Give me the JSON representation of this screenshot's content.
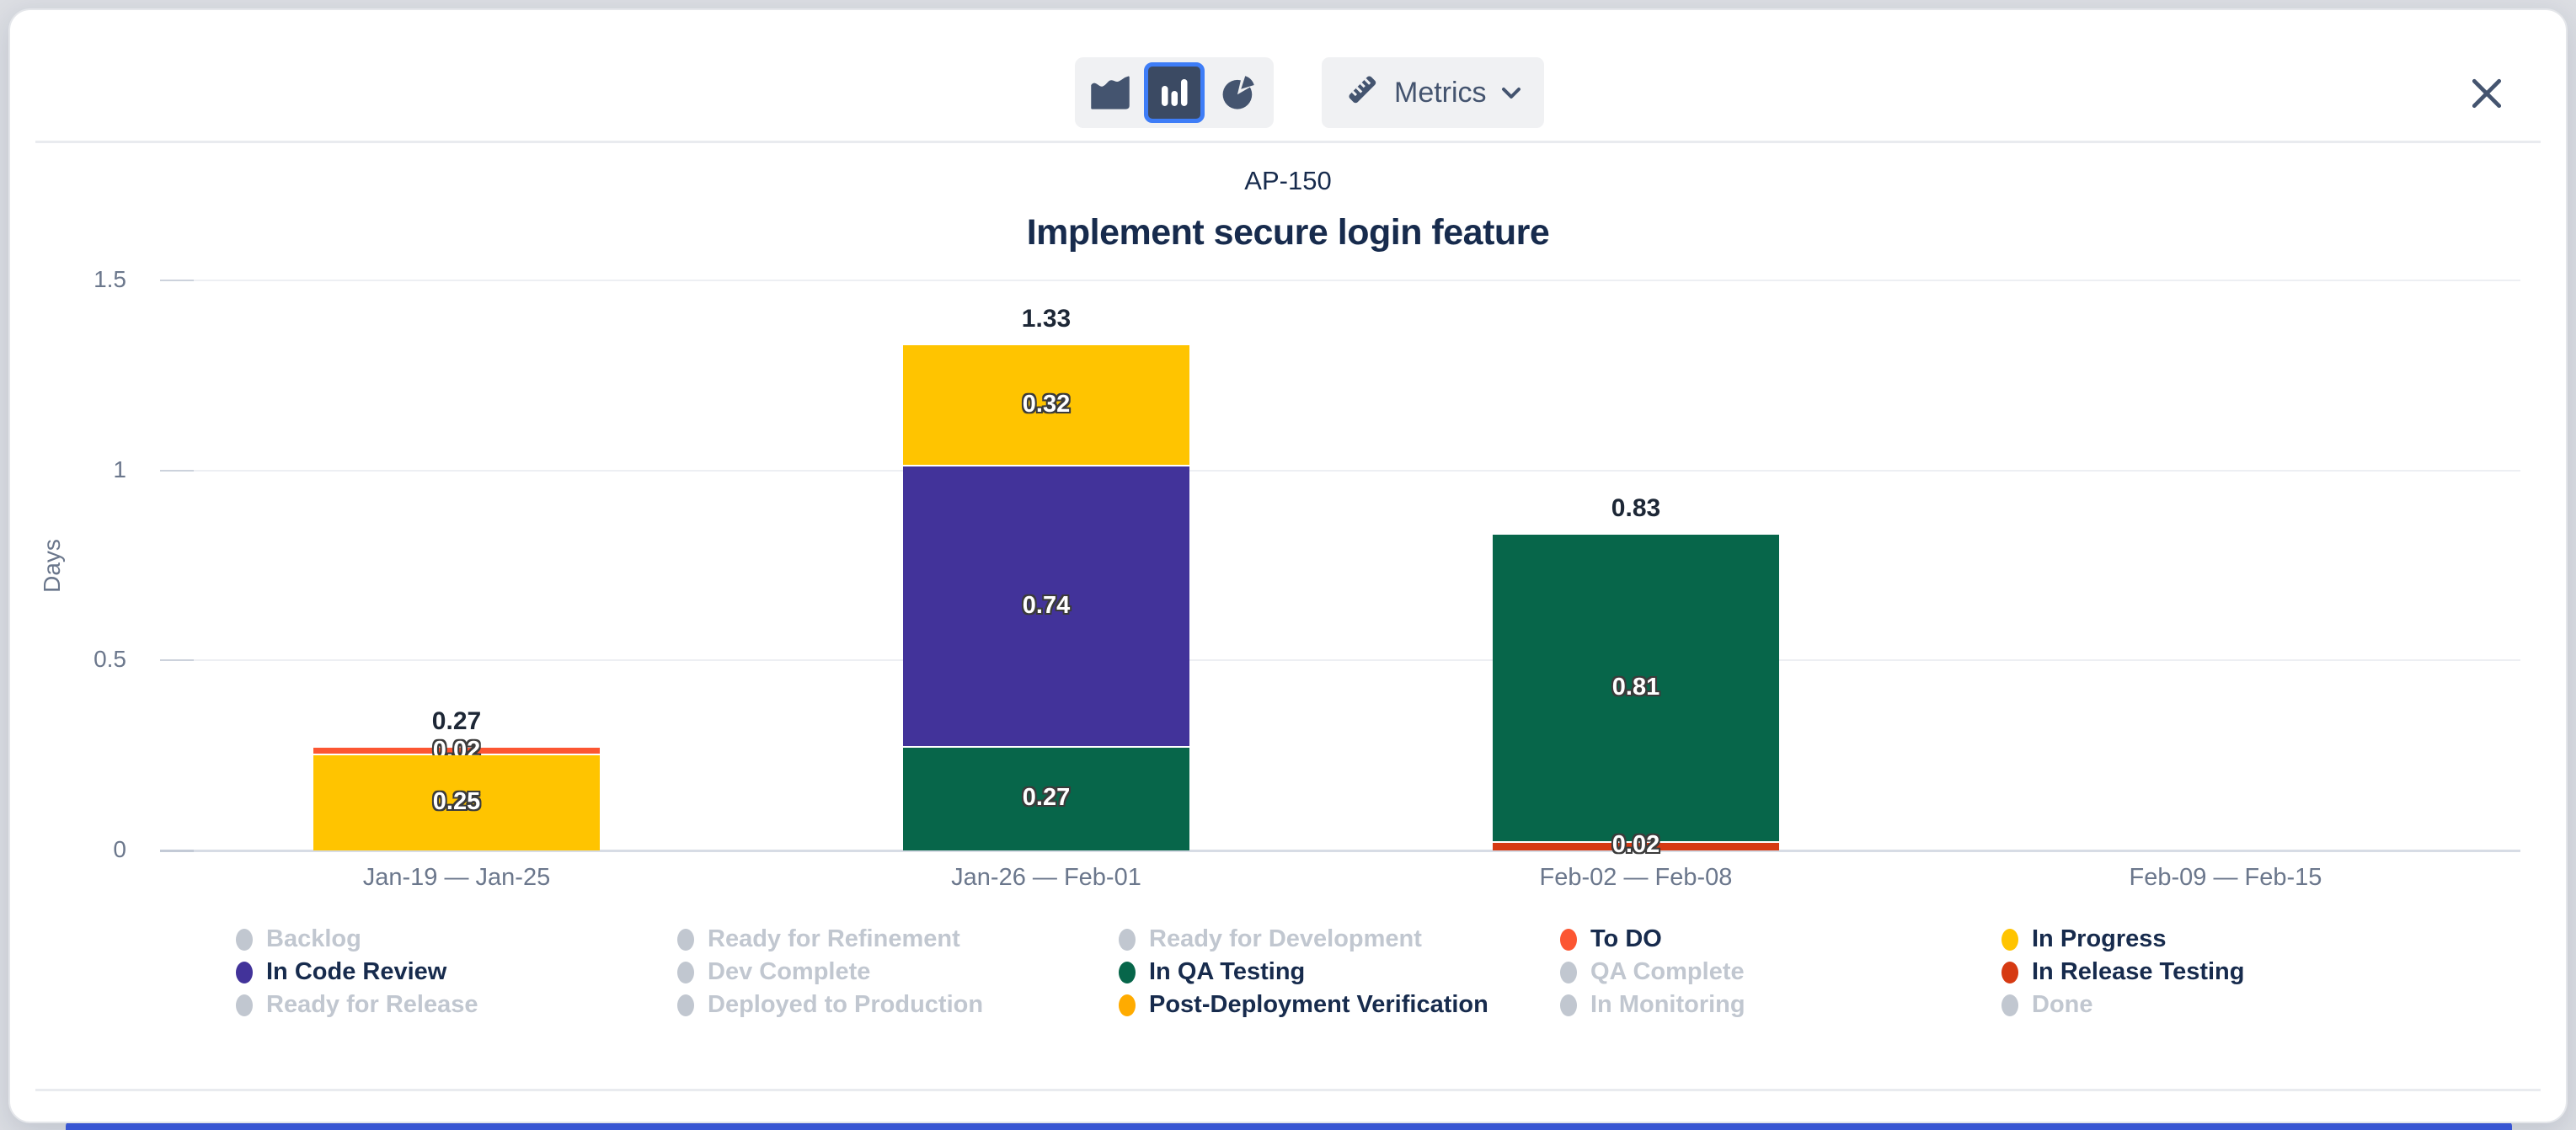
{
  "page": {
    "background_color": "#dcdee3",
    "bottom_strip_color": "#3D5BE0",
    "accent_blue": "#3E7DF7"
  },
  "toolbar": {
    "chart_type_switcher": [
      {
        "id": "area",
        "icon": "area-chart-icon",
        "selected": false
      },
      {
        "id": "bar",
        "icon": "bar-chart-icon",
        "selected": true
      },
      {
        "id": "pie",
        "icon": "pie-chart-icon",
        "selected": false
      }
    ],
    "metrics_label": "Metrics",
    "metrics_icon": "ruler-icon",
    "metrics_chevron_icon": "chevron-down-icon",
    "close_icon": "close-icon"
  },
  "chart_data": {
    "type": "bar",
    "stacked": true,
    "subtitle": "AP-150",
    "title": "Implement secure login feature",
    "ylabel": "Days",
    "ylim": [
      0,
      1.5
    ],
    "grid": true,
    "legend_position": "bottom",
    "yticks": [
      {
        "value": 0,
        "label": "0"
      },
      {
        "value": 0.5,
        "label": "0.5"
      },
      {
        "value": 1,
        "label": "1"
      },
      {
        "value": 1.5,
        "label": "1.5"
      }
    ],
    "categories": [
      "Jan-19 — Jan-25",
      "Jan-26 — Feb-01",
      "Feb-02 — Feb-08",
      "Feb-09 — Feb-15"
    ],
    "status_colors": {
      "To DO": "#FC5632",
      "In Progress": "#FFC400",
      "In Code Review": "#42339A",
      "In QA Testing": "#07664A",
      "In Release Testing": "#D63A12",
      "Post-Deployment Verification": "#FFAB00"
    },
    "disabled_color": "#C1C7D0",
    "bars": [
      {
        "category": "Jan-19 — Jan-25",
        "total": 0.27,
        "segments_top_to_bottom": [
          {
            "status": "To DO",
            "value": 0.02
          },
          {
            "status": "In Progress",
            "value": 0.25
          }
        ]
      },
      {
        "category": "Jan-26 — Feb-01",
        "total": 1.33,
        "segments_top_to_bottom": [
          {
            "status": "In Progress",
            "value": 0.32
          },
          {
            "status": "In Code Review",
            "value": 0.74
          },
          {
            "status": "In QA Testing",
            "value": 0.27
          }
        ]
      },
      {
        "category": "Feb-02 — Feb-08",
        "total": 0.83,
        "segments_top_to_bottom": [
          {
            "status": "In QA Testing",
            "value": 0.81
          },
          {
            "status": "In Release Testing",
            "value": 0.02
          }
        ]
      },
      {
        "category": "Feb-09 — Feb-15",
        "total": null,
        "segments_top_to_bottom": []
      }
    ],
    "legend": [
      {
        "label": "Backlog",
        "active": false
      },
      {
        "label": "Ready for Refinement",
        "active": false
      },
      {
        "label": "Ready for Development",
        "active": false
      },
      {
        "label": "To DO",
        "active": true
      },
      {
        "label": "In Progress",
        "active": true
      },
      {
        "label": "In Code Review",
        "active": true
      },
      {
        "label": "Dev Complete",
        "active": false
      },
      {
        "label": "In QA Testing",
        "active": true
      },
      {
        "label": "QA Complete",
        "active": false
      },
      {
        "label": "In Release Testing",
        "active": true
      },
      {
        "label": "Ready for Release",
        "active": false
      },
      {
        "label": "Deployed to Production",
        "active": false
      },
      {
        "label": "Post-Deployment Verification",
        "active": true
      },
      {
        "label": "In Monitoring",
        "active": false
      },
      {
        "label": "Done",
        "active": false
      }
    ]
  }
}
